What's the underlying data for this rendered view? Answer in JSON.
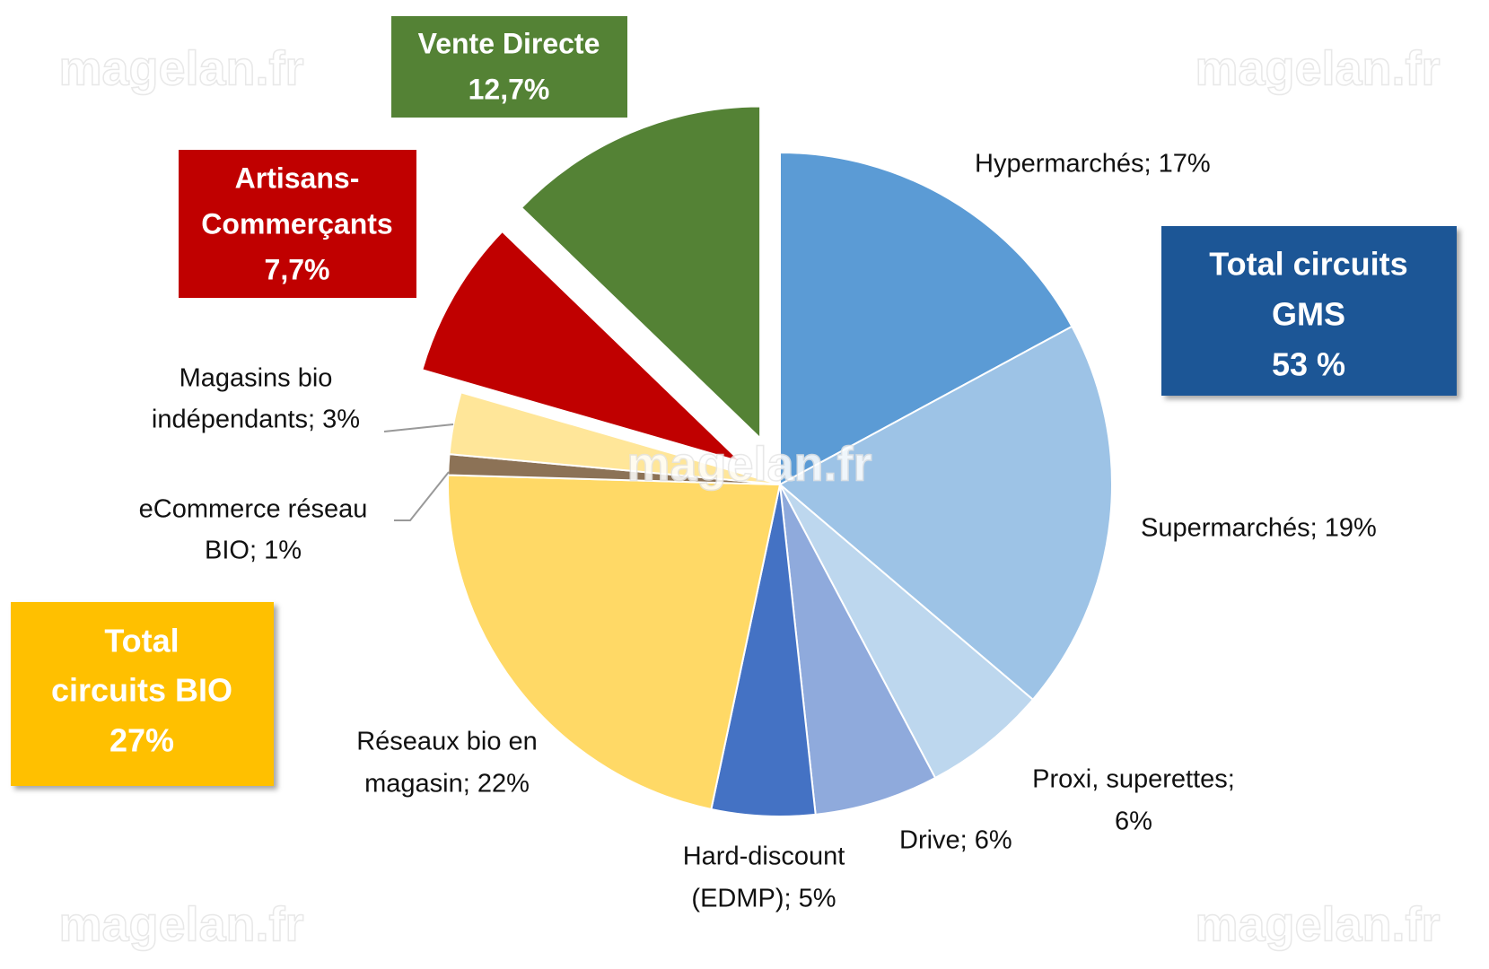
{
  "chart_data": {
    "type": "pie",
    "labels": [
      [
        "Hypermarchés; 17%"
      ],
      [
        "Supermarchés; 19%"
      ],
      [
        "Proxi, superettes;",
        "6%"
      ],
      [
        "Drive; 6%"
      ],
      [
        "Hard-discount",
        "(EDMP); 5%"
      ],
      [
        "Réseaux bio en",
        "magasin; 22%"
      ],
      [
        "eCommerce réseau",
        "BIO; 1%"
      ],
      [
        "Magasins bio",
        "indépendants; 3%"
      ],
      [
        "Artisans-",
        "Commerçants",
        "7,7%"
      ],
      [
        "Vente Directe",
        "12,7%"
      ]
    ],
    "values": [
      17,
      19,
      6,
      6,
      5,
      22,
      1,
      3,
      7.7,
      12.7
    ],
    "colors": [
      "#5b9bd5",
      "#9dc3e6",
      "#bdd7ee",
      "#8faadc",
      "#4472c4",
      "#ffd966",
      "#8c7256",
      "#ffe699",
      "#c00000",
      "#548235"
    ],
    "annotations": [
      {
        "lines": [
          "Total circuits",
          "GMS",
          "53 %"
        ],
        "color": "#1f5796"
      },
      {
        "lines": [
          "Total",
          "circuits BIO",
          "27%"
        ],
        "color": "#ffc000"
      }
    ],
    "watermark": "magelan.fr"
  }
}
